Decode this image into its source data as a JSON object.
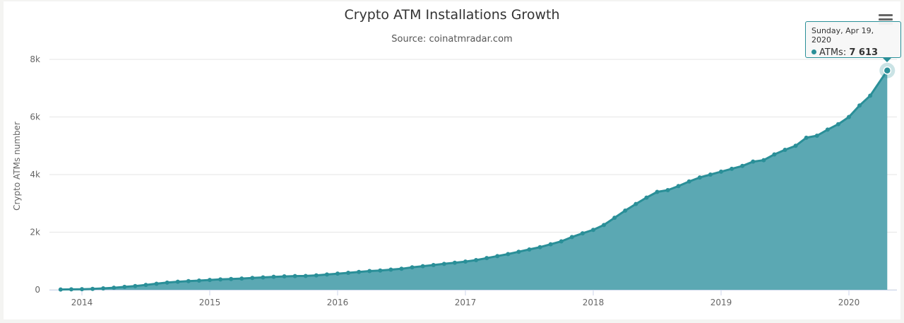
{
  "title": "Crypto ATM Installations Growth",
  "subtitle": "Source: coinatmradar.com",
  "tooltip": {
    "date": "Sunday, Apr 19, 2020",
    "series": "ATMs:",
    "value": "7 613"
  },
  "colors": {
    "area": "#5ba8b3",
    "line": "#2a8f98",
    "marker": "#2a8f98"
  },
  "chart_data": {
    "type": "area",
    "ylabel": "Crypto ATMs number",
    "xlabel": "",
    "ylim": [
      0,
      8000
    ],
    "yticks": [
      0,
      2000,
      4000,
      6000,
      8000
    ],
    "ytick_labels": [
      "0",
      "2k",
      "4k",
      "6k",
      "8k"
    ],
    "xtick_labels": [
      "2014",
      "2015",
      "2016",
      "2017",
      "2018",
      "2019",
      "2020"
    ],
    "grid": true,
    "series": [
      {
        "name": "ATMs",
        "x": [
          "2013-11",
          "2013-12",
          "2014-01",
          "2014-02",
          "2014-03",
          "2014-04",
          "2014-05",
          "2014-06",
          "2014-07",
          "2014-08",
          "2014-09",
          "2014-10",
          "2014-11",
          "2014-12",
          "2015-01",
          "2015-02",
          "2015-03",
          "2015-04",
          "2015-05",
          "2015-06",
          "2015-07",
          "2015-08",
          "2015-09",
          "2015-10",
          "2015-11",
          "2015-12",
          "2016-01",
          "2016-02",
          "2016-03",
          "2016-04",
          "2016-05",
          "2016-06",
          "2016-07",
          "2016-08",
          "2016-09",
          "2016-10",
          "2016-11",
          "2016-12",
          "2017-01",
          "2017-02",
          "2017-03",
          "2017-04",
          "2017-05",
          "2017-06",
          "2017-07",
          "2017-08",
          "2017-09",
          "2017-10",
          "2017-11",
          "2017-12",
          "2018-01",
          "2018-02",
          "2018-03",
          "2018-04",
          "2018-05",
          "2018-06",
          "2018-07",
          "2018-08",
          "2018-09",
          "2018-10",
          "2018-11",
          "2018-12",
          "2019-01",
          "2019-02",
          "2019-03",
          "2019-04",
          "2019-05",
          "2019-06",
          "2019-07",
          "2019-08",
          "2019-09",
          "2019-10",
          "2019-11",
          "2019-12",
          "2020-01",
          "2020-02",
          "2020-03",
          "2020-04"
        ],
        "values": [
          10,
          15,
          20,
          30,
          50,
          70,
          100,
          130,
          170,
          210,
          250,
          280,
          300,
          320,
          340,
          360,
          375,
          390,
          410,
          430,
          450,
          465,
          475,
          480,
          500,
          530,
          560,
          590,
          620,
          650,
          670,
          700,
          730,
          780,
          820,
          860,
          900,
          940,
          980,
          1030,
          1100,
          1170,
          1240,
          1320,
          1400,
          1480,
          1580,
          1680,
          1830,
          1960,
          2080,
          2250,
          2500,
          2750,
          2980,
          3200,
          3400,
          3460,
          3600,
          3760,
          3900,
          4000,
          4100,
          4200,
          4300,
          4450,
          4500,
          4700,
          4860,
          5000,
          5280,
          5350,
          5560,
          5750,
          6000,
          6400,
          6740,
          7613
        ]
      }
    ]
  }
}
